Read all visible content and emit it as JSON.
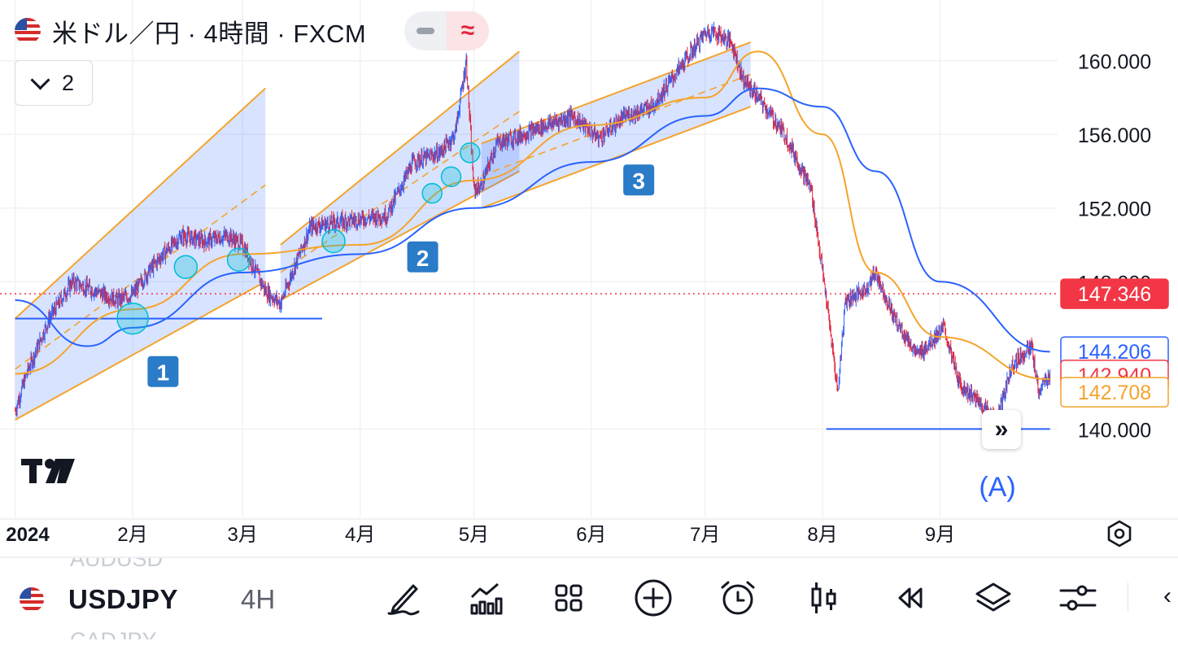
{
  "header": {
    "title": "米ドル／円 · 4時間 · FXCM",
    "indicator_toggle_minus": "−",
    "indicator_toggle_active": "≈",
    "collapse_count": "2"
  },
  "chart_data": {
    "type": "line",
    "series": [
      {
        "type": "candlestick",
        "color": "#e0263b",
        "alt_color": "#2962ff",
        "x": [
          "2024-01-01",
          "2024-01-04",
          "2024-01-10",
          "2024-01-16",
          "2024-01-22",
          "2024-01-28",
          "2024-02-01",
          "2024-02-05",
          "2024-02-09",
          "2024-02-14",
          "2024-02-20",
          "2024-02-26",
          "2024-03-01",
          "2024-03-07",
          "2024-03-11",
          "2024-03-15",
          "2024-03-19",
          "2024-03-25",
          "2024-04-01",
          "2024-04-08",
          "2024-04-15",
          "2024-04-22",
          "2024-04-26",
          "2024-04-29",
          "2024-05-01",
          "2024-05-03",
          "2024-05-07",
          "2024-05-14",
          "2024-05-20",
          "2024-05-27",
          "2024-06-03",
          "2024-06-10",
          "2024-06-17",
          "2024-06-24",
          "2024-07-01",
          "2024-07-03",
          "2024-07-08",
          "2024-07-11",
          "2024-07-15",
          "2024-07-22",
          "2024-07-29",
          "2024-08-02",
          "2024-08-05",
          "2024-08-07",
          "2024-08-12",
          "2024-08-15",
          "2024-08-20",
          "2024-08-26",
          "2024-09-02",
          "2024-09-06",
          "2024-09-11",
          "2024-09-16",
          "2024-09-20",
          "2024-09-25",
          "2024-09-27",
          "2024-09-30"
        ],
        "y": [
          141.0,
          143.0,
          146.0,
          148.0,
          147.5,
          147.0,
          147.3,
          148.5,
          149.5,
          150.5,
          150.2,
          150.5,
          150.0,
          147.5,
          146.8,
          149.0,
          151.0,
          151.2,
          151.4,
          151.6,
          154.5,
          155.0,
          156.0,
          160.0,
          153.0,
          153.2,
          155.5,
          156.0,
          156.5,
          157.0,
          155.8,
          157.0,
          157.5,
          159.5,
          161.5,
          161.6,
          161.0,
          159.0,
          158.0,
          156.0,
          153.0,
          147.0,
          142.0,
          147.0,
          147.5,
          148.5,
          146.0,
          144.0,
          145.5,
          142.5,
          141.5,
          140.5,
          143.5,
          144.5,
          142.0,
          143.0
        ]
      },
      {
        "name": "",
        "color": "#f5a32b",
        "x": [
          "2024-01-01",
          "2024-02-01",
          "2024-03-01",
          "2024-04-01",
          "2024-05-01",
          "2024-06-01",
          "2024-07-01",
          "2024-07-15",
          "2024-08-01",
          "2024-08-15",
          "2024-09-01",
          "2024-09-30"
        ],
        "y": [
          143.0,
          146.5,
          149.5,
          150.0,
          153.5,
          156.5,
          158.0,
          160.5,
          156.0,
          148.5,
          145.0,
          142.7
        ]
      },
      {
        "name": "",
        "color": "#2962ff",
        "x": [
          "2024-01-01",
          "2024-01-20",
          "2024-02-01",
          "2024-03-01",
          "2024-04-01",
          "2024-05-01",
          "2024-06-01",
          "2024-07-01",
          "2024-07-15",
          "2024-08-01",
          "2024-08-15",
          "2024-09-01",
          "2024-09-30"
        ],
        "y": [
          147.0,
          144.5,
          145.5,
          148.5,
          149.5,
          152.0,
          154.5,
          157.0,
          158.5,
          157.5,
          154.0,
          148.0,
          144.2
        ]
      }
    ],
    "x_ticks": [
      "2024",
      "2月",
      "3月",
      "4月",
      "5月",
      "6月",
      "7月",
      "8月",
      "9月"
    ],
    "y_ticks": [
      "160.000",
      "156.000",
      "152.000",
      "148.000",
      "140.000"
    ],
    "ylim": [
      136.0,
      162.5
    ],
    "xlim": [
      "2023-12-28",
      "2024-10-02"
    ],
    "grid": true,
    "price_labels": [
      {
        "value": "147.346",
        "price": 147.346,
        "color": "#f23645",
        "filled": true
      },
      {
        "value": "144.206",
        "price": 144.206,
        "color": "#2962ff",
        "filled": false
      },
      {
        "value": "142.940",
        "price": 142.94,
        "color": "#f23645",
        "filled": false
      },
      {
        "value": "142.708",
        "price": 142.708,
        "color": "#f5a32b",
        "filled": false
      }
    ],
    "current_price_line": 147.346,
    "channels": [
      {
        "label": "1",
        "start": "2024-01-01",
        "end": "2024-03-07",
        "lower_start": 140.5,
        "lower_end": 148.0,
        "upper_start": 146.0,
        "upper_end": 158.5
      },
      {
        "label": "2",
        "start": "2024-03-11",
        "end": "2024-05-13",
        "lower_start": 147.0,
        "lower_end": 154.0,
        "upper_start": 150.0,
        "upper_end": 160.5
      },
      {
        "label": "3",
        "start": "2024-05-03",
        "end": "2024-07-13",
        "lower_start": 152.0,
        "lower_end": 157.5,
        "upper_start": 155.5,
        "upper_end": 161.0
      }
    ],
    "horizontal_lines": [
      {
        "price": 146.0,
        "start": "2024-01-01",
        "end": "2024-03-22",
        "color": "#2962ff"
      },
      {
        "price": 140.0,
        "start": "2024-08-02",
        "end": "2024-09-30",
        "color": "#2962ff"
      }
    ],
    "circles": [
      {
        "x": "2024-02-01",
        "price": 146.0
      },
      {
        "x": "2024-02-15",
        "price": 148.8
      },
      {
        "x": "2024-02-29",
        "price": 149.2
      },
      {
        "x": "2024-03-25",
        "price": 150.2
      },
      {
        "x": "2024-04-20",
        "price": 152.8
      },
      {
        "x": "2024-04-25",
        "price": 153.7
      },
      {
        "x": "2024-04-30",
        "price": 155.0
      }
    ],
    "wave_label": "(A)"
  },
  "bottom": {
    "ghost_prev": "AUDUSD",
    "symbol": "USDJPY",
    "timeframe": "4H",
    "ghost_next": "CADJPY",
    "tools": [
      "draw-icon",
      "indicators-icon",
      "layout-icon",
      "add-icon",
      "alert-icon",
      "candle-icon",
      "replay-icon",
      "layers-icon",
      "settings-icon"
    ]
  }
}
